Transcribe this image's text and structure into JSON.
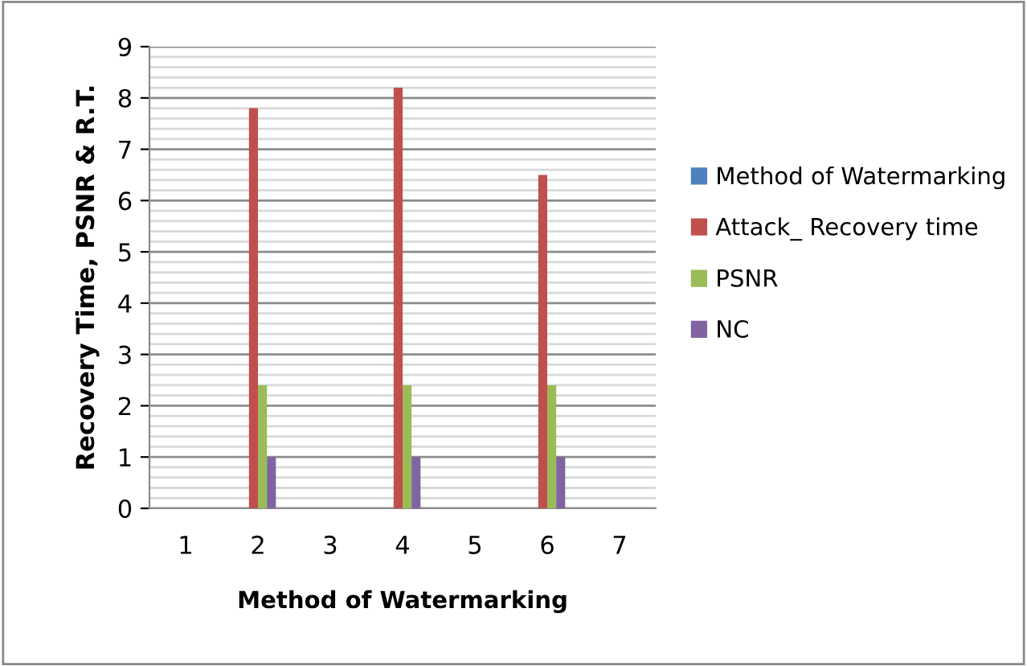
{
  "chart_data": {
    "type": "bar",
    "xlabel": "Method of Watermarking",
    "ylabel": "Recovery Time, PSNR & R.T.",
    "categories": [
      "1",
      "2",
      "3",
      "4",
      "5",
      "6",
      "7"
    ],
    "series": [
      {
        "name": "Method of Watermarking",
        "color": "#4f81bd",
        "values": [
          null,
          null,
          null,
          null,
          null,
          null,
          null
        ]
      },
      {
        "name": "Attack_ Recovery time",
        "color": "#c0504d",
        "values": [
          null,
          7.8,
          null,
          8.2,
          null,
          6.5,
          null
        ]
      },
      {
        "name": "PSNR",
        "color": "#9bbb59",
        "values": [
          null,
          2.4,
          null,
          2.4,
          null,
          2.4,
          null
        ]
      },
      {
        "name": "NC",
        "color": "#8064a2",
        "values": [
          null,
          1,
          null,
          1,
          null,
          1,
          null
        ]
      }
    ],
    "ylim": [
      0,
      9
    ],
    "yticks": [
      0,
      1,
      2,
      3,
      4,
      5,
      6,
      7,
      8,
      9
    ],
    "grid": "y",
    "legend": "right"
  }
}
